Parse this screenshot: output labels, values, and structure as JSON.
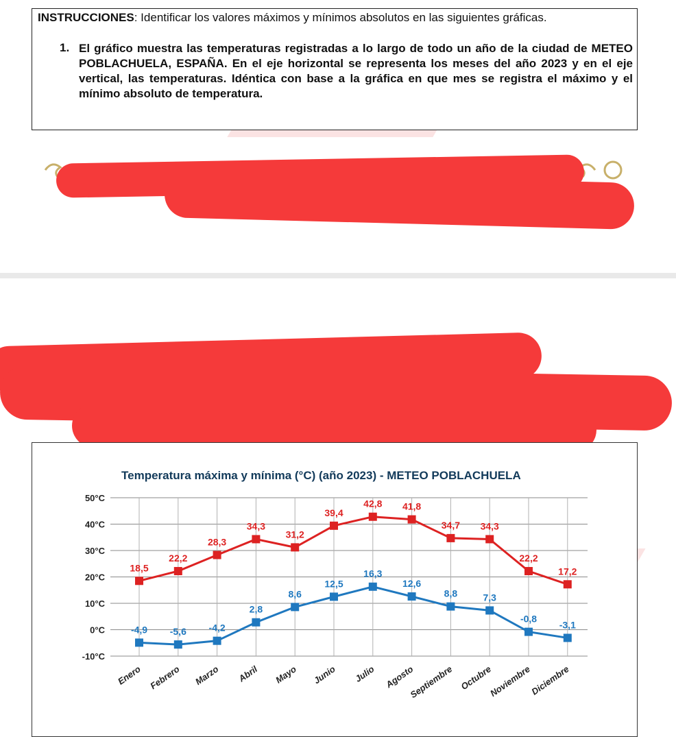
{
  "instructions": {
    "label": "INSTRUCCIONES",
    "text": ": Identificar los valores máximos y mínimos absolutos en las siguientes gráficas."
  },
  "question": {
    "number": "1.",
    "text": "El gráfico muestra las temperaturas registradas a lo largo de todo un año de la ciudad de METEO POBLACHUELA, ESPAÑA. En el eje horizontal se representa los meses del año 2023 y en el eje vertical, las temperaturas. Idéntica con base a la gráfica en que mes se registra el máximo y el mínimo absoluto de temperatura."
  },
  "colors": {
    "max_series": "#dd2222",
    "min_series": "#1f78bf",
    "redaction": "#f53a3a"
  },
  "chart_data": {
    "type": "line",
    "title": "Temperatura máxima y mínima (°C) (año 2023) - METEO POBLACHUELA",
    "categories": [
      "Enero",
      "Febrero",
      "Marzo",
      "Abril",
      "Mayo",
      "Junio",
      "Julio",
      "Agosto",
      "Septiembre",
      "Octubre",
      "Noviembre",
      "Diciembre"
    ],
    "ylim": [
      -10,
      50
    ],
    "yticks": [
      "50°C",
      "40°C",
      "30°C",
      "20°C",
      "10°C",
      "0°C",
      "-10°C"
    ],
    "grid": true,
    "series": [
      {
        "name": "",
        "color": "#dd2222",
        "values": [
          18.5,
          22.2,
          28.3,
          34.3,
          31.2,
          39.4,
          42.8,
          41.8,
          34.7,
          34.3,
          22.2,
          17.2
        ],
        "labels": [
          "18,5",
          "22,2",
          "28,3",
          "34,3",
          "31,2",
          "39,4",
          "42,8",
          "41,8",
          "34,7",
          "34,3",
          "22,2",
          "17,2"
        ]
      },
      {
        "name": "",
        "color": "#1f78bf",
        "values": [
          -4.9,
          -5.6,
          -4.2,
          2.8,
          8.6,
          12.5,
          16.3,
          12.6,
          8.8,
          7.3,
          -0.8,
          -3.1
        ],
        "labels": [
          "-4,9",
          "-5,6",
          "-4,2",
          "2,8",
          "8,6",
          "12,5",
          "16,3",
          "12,6",
          "8,8",
          "7,3",
          "-0,8",
          "-3,1"
        ]
      }
    ]
  }
}
